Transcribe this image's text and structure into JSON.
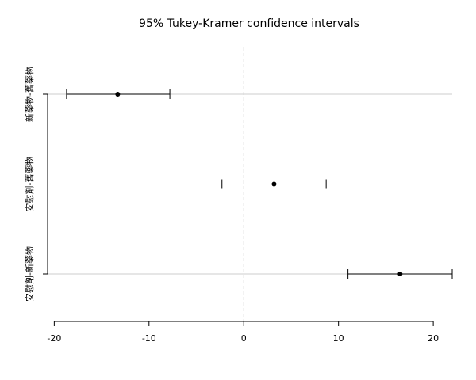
{
  "chart_data": {
    "type": "interval",
    "title": "95% Tukey-Kramer confidence intervals",
    "categories": [
      "新薬物-舊薬物",
      "安慰剤-舊薬物",
      "安慰剤-新薬物"
    ],
    "values": [
      -13.3,
      3.2,
      16.5
    ],
    "lower": [
      -18.7,
      -2.3,
      11.0
    ],
    "upper": [
      -7.8,
      8.7,
      22.0
    ],
    "reference": 0,
    "xlim": [
      -20.7,
      22.0
    ],
    "xticks": [
      -20,
      -10,
      0,
      10,
      20
    ],
    "color": "#000000",
    "grid": true
  }
}
